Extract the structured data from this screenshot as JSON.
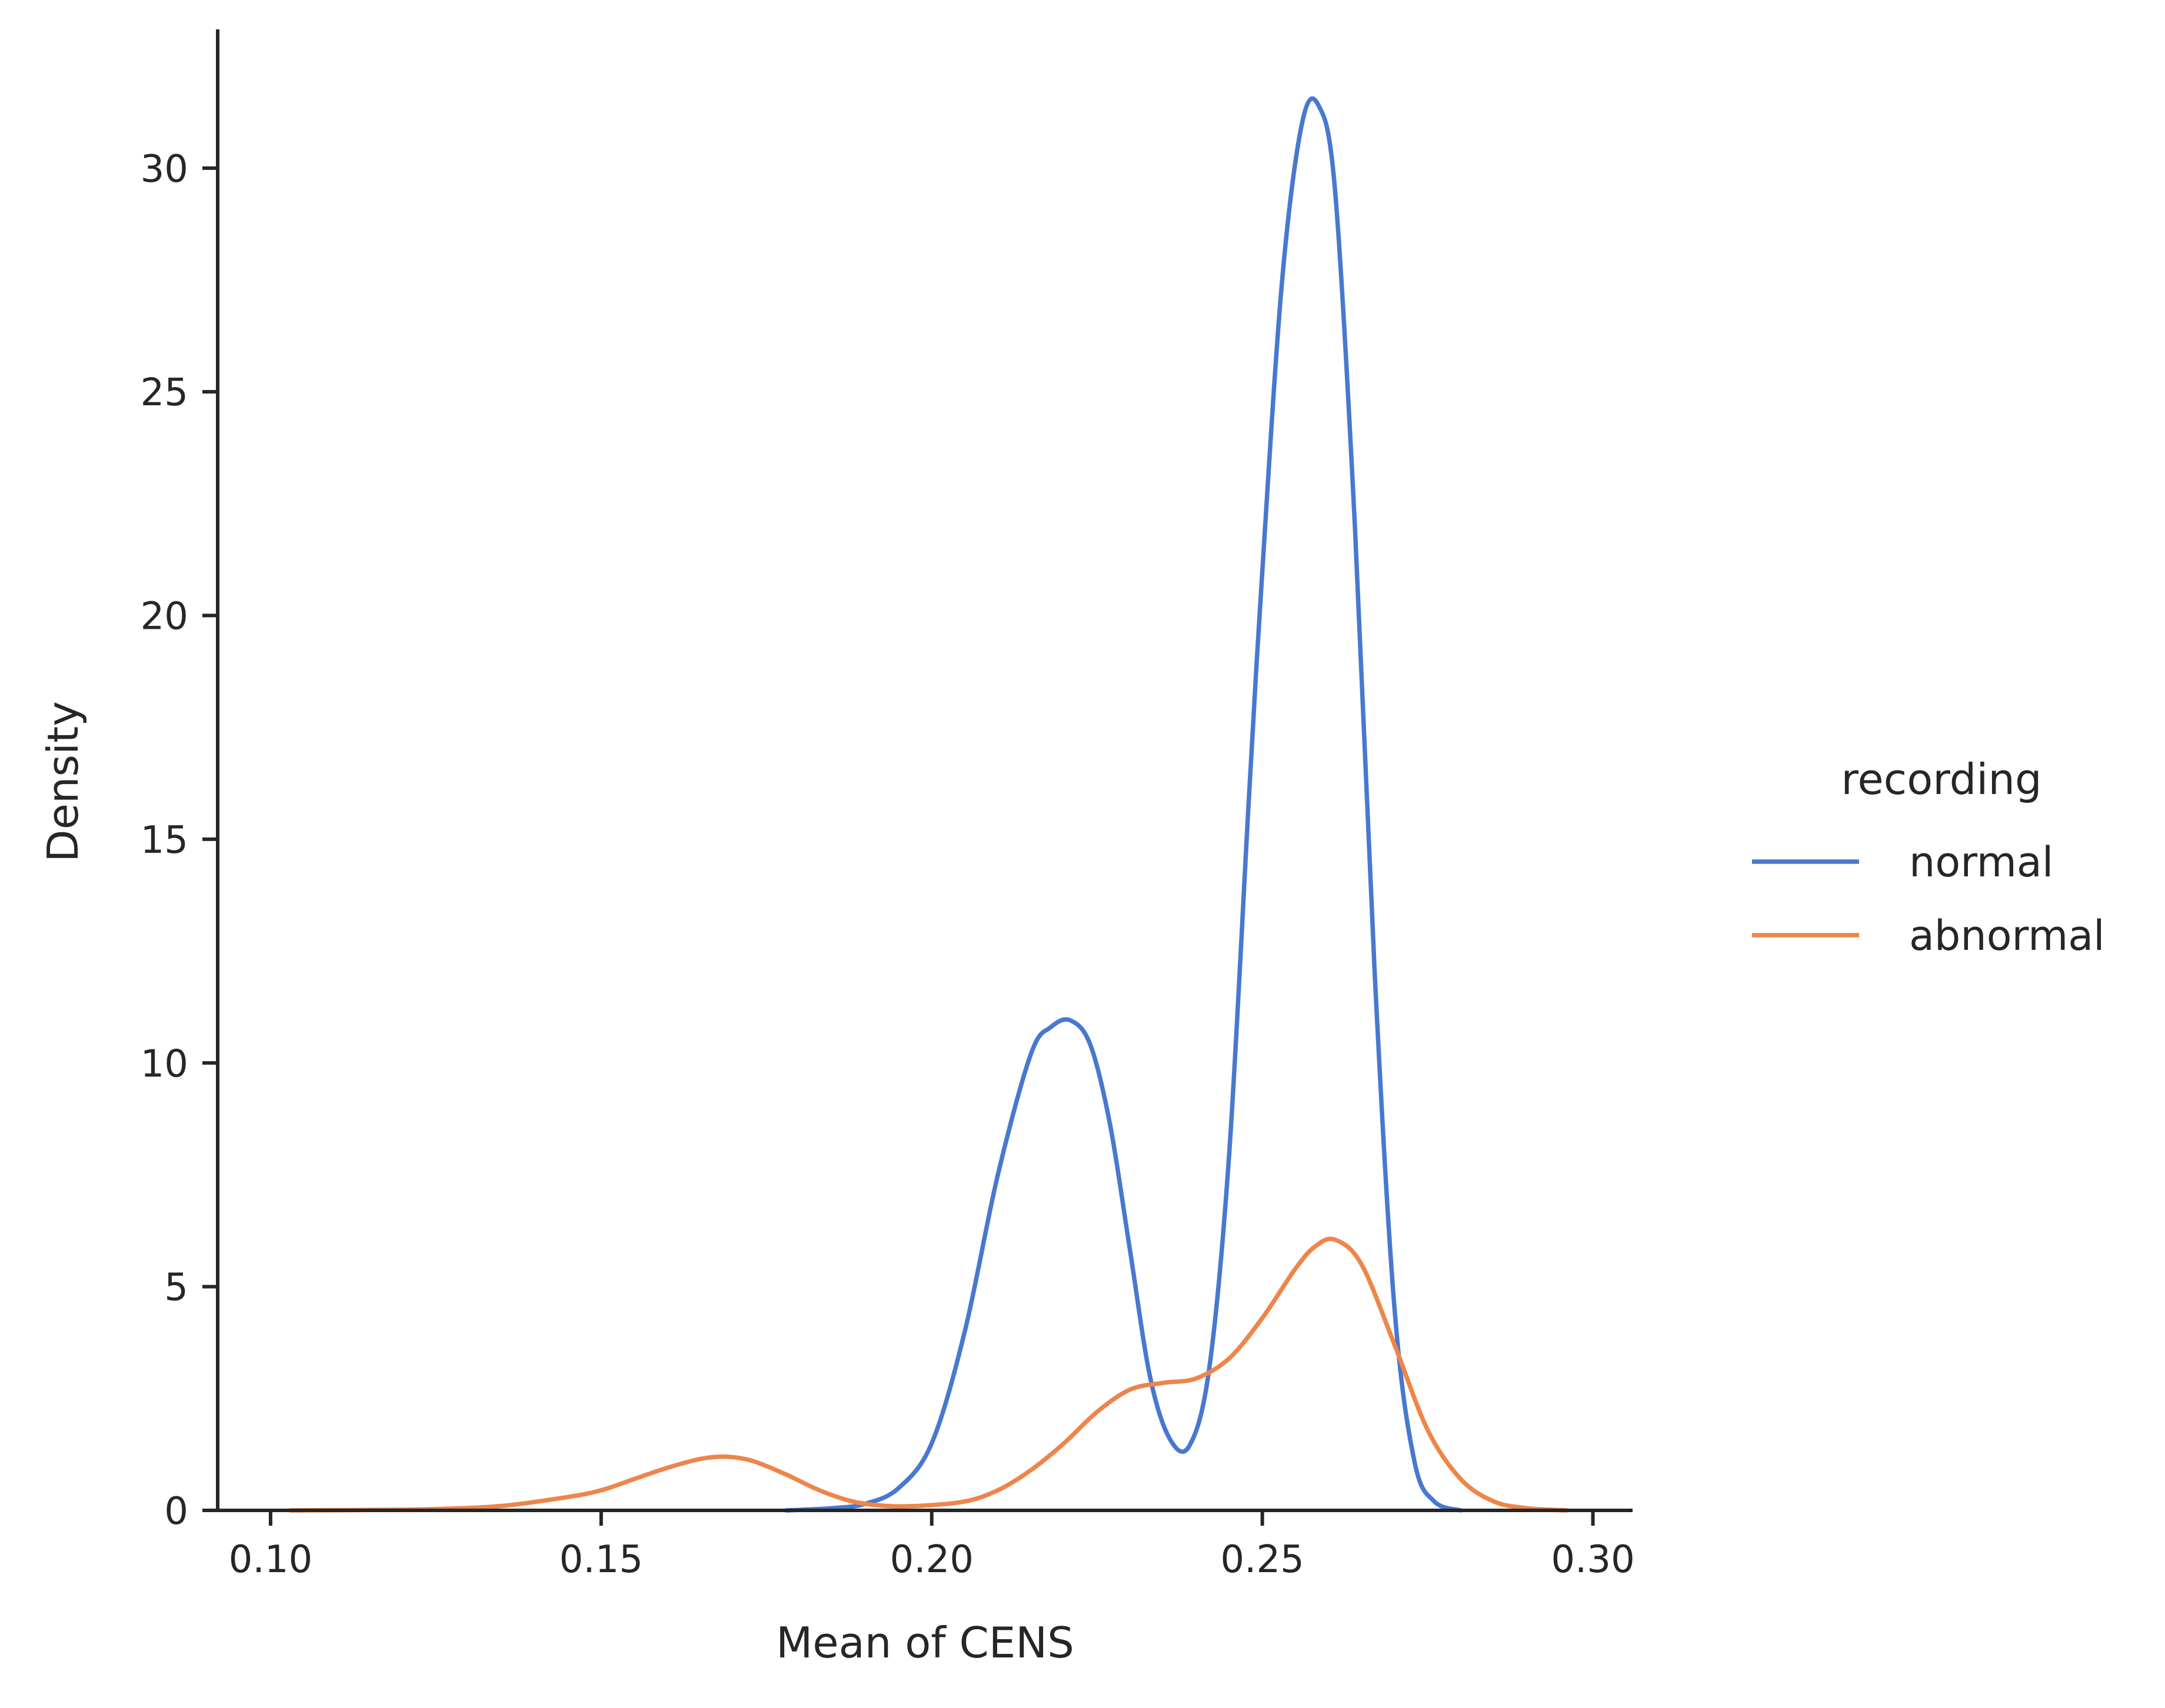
{
  "chart_data": {
    "type": "line",
    "xlabel": "Mean of CENS",
    "ylabel": "Density",
    "xlim": [
      0.092,
      0.306
    ],
    "ylim": [
      0,
      33.1
    ],
    "x_ticks": [
      0.1,
      0.15,
      0.2,
      0.25,
      0.3
    ],
    "x_tick_labels": [
      "0.10",
      "0.15",
      "0.20",
      "0.25",
      "0.30"
    ],
    "y_ticks": [
      0,
      5,
      10,
      15,
      20,
      25,
      30
    ],
    "y_tick_labels": [
      "0",
      "5",
      "10",
      "15",
      "20",
      "25",
      "30"
    ],
    "grid": false,
    "legend": {
      "title": "recording",
      "placement": "right"
    },
    "series": [
      {
        "name": "normal",
        "color": "#4878d0",
        "x": [
          0.178,
          0.185,
          0.19,
          0.195,
          0.2,
          0.205,
          0.21,
          0.215,
          0.218,
          0.221,
          0.224,
          0.227,
          0.23,
          0.233,
          0.236,
          0.239,
          0.242,
          0.245,
          0.248,
          0.25,
          0.253,
          0.256,
          0.2585,
          0.261,
          0.264,
          0.267,
          0.27,
          0.273,
          0.276,
          0.28
        ],
        "y": [
          0.0,
          0.05,
          0.15,
          0.5,
          1.5,
          4.0,
          7.5,
          10.2,
          10.8,
          10.95,
          10.4,
          8.6,
          5.8,
          3.0,
          1.6,
          1.45,
          3.2,
          8.0,
          16.0,
          21.0,
          27.5,
          31.0,
          31.4,
          29.5,
          22.0,
          12.0,
          4.5,
          1.1,
          0.2,
          0.0
        ]
      },
      {
        "name": "abnormal",
        "color": "#ee854a",
        "x": [
          0.103,
          0.115,
          0.125,
          0.135,
          0.145,
          0.15,
          0.155,
          0.16,
          0.165,
          0.169,
          0.173,
          0.178,
          0.183,
          0.188,
          0.193,
          0.198,
          0.205,
          0.21,
          0.215,
          0.22,
          0.225,
          0.23,
          0.235,
          0.24,
          0.245,
          0.25,
          0.255,
          0.258,
          0.261,
          0.265,
          0.27,
          0.275,
          0.28,
          0.285,
          0.29,
          0.296
        ],
        "y": [
          0.0,
          0.01,
          0.03,
          0.1,
          0.3,
          0.45,
          0.7,
          0.95,
          1.15,
          1.2,
          1.1,
          0.8,
          0.45,
          0.2,
          0.1,
          0.1,
          0.2,
          0.45,
          0.9,
          1.5,
          2.2,
          2.7,
          2.85,
          2.95,
          3.4,
          4.3,
          5.4,
          5.9,
          6.05,
          5.5,
          3.7,
          1.8,
          0.7,
          0.2,
          0.05,
          0.0
        ]
      }
    ]
  }
}
